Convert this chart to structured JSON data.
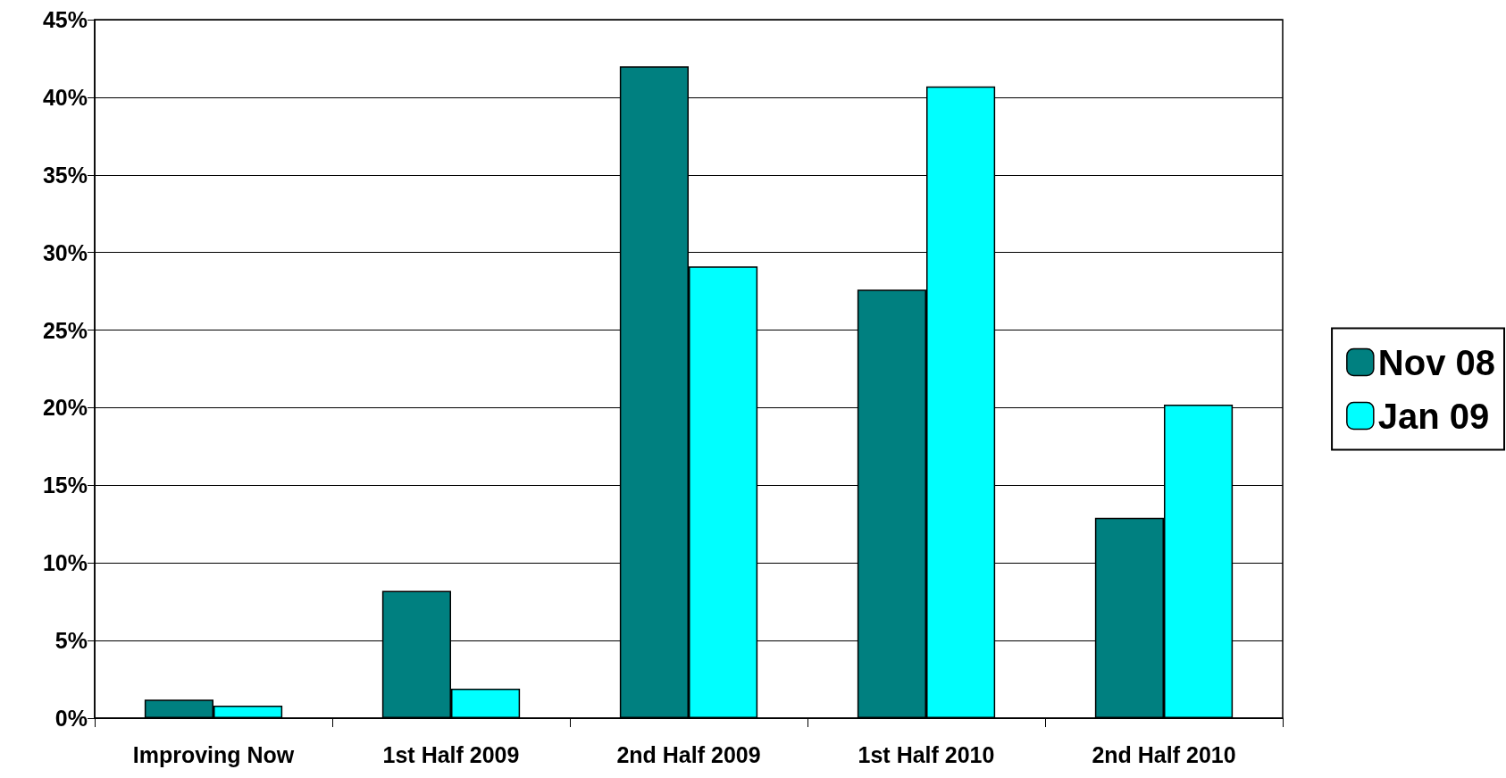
{
  "chart_data": {
    "type": "bar",
    "categories": [
      "Improving Now",
      "1st Half 2009",
      "2nd Half 2009",
      "1st Half 2010",
      "2nd Half 2010"
    ],
    "series": [
      {
        "name": "Nov 08",
        "color": "#008080",
        "values": [
          1.2,
          8.2,
          42.0,
          27.6,
          12.9
        ]
      },
      {
        "name": "Jan 09",
        "color": "#00ffff",
        "values": [
          0.8,
          1.9,
          29.1,
          40.7,
          20.2
        ]
      }
    ],
    "ylim": [
      0,
      45
    ],
    "yticks": [
      {
        "value": 0,
        "label": "0%"
      },
      {
        "value": 5,
        "label": "5%"
      },
      {
        "value": 10,
        "label": "10%"
      },
      {
        "value": 15,
        "label": "15%"
      },
      {
        "value": 20,
        "label": "20%"
      },
      {
        "value": 25,
        "label": "25%"
      },
      {
        "value": 30,
        "label": "30%"
      },
      {
        "value": 35,
        "label": "35%"
      },
      {
        "value": 40,
        "label": "40%"
      },
      {
        "value": 45,
        "label": "45%"
      }
    ],
    "grid": "y",
    "legend": "right"
  }
}
